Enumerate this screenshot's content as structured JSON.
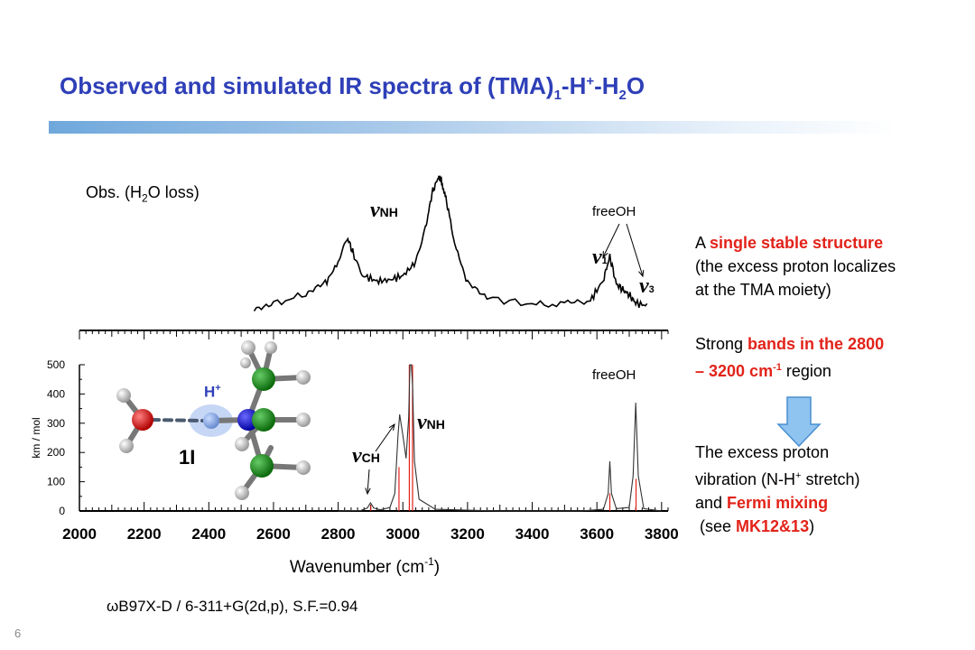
{
  "title": {
    "part1": "Observed and simulated IR spectra of (TMA)",
    "sub1": "1",
    "part2": "-H",
    "sup1": "+",
    "part3": "-H",
    "sub2": "2",
    "part4": "O"
  },
  "obs_label": {
    "prefix": "Obs. (H",
    "sub": "2",
    "suffix": "O loss)"
  },
  "annotations": {
    "nu_symbol": "ν",
    "nh": "NH",
    "ch": "CH",
    "nu1": "1",
    "nu3": "3",
    "freeoh_top": "freeOH",
    "freeoh_bottom": "freeOH",
    "h_plus": "H",
    "h_plus_sup": "+",
    "structure_label": "1I"
  },
  "side_text": {
    "p1_a": "A ",
    "p1_b": "single stable structure",
    "p1_c": "(the excess proton localizes",
    "p1_d": "at the TMA moiety)",
    "p2_a": "Strong ",
    "p2_b": "bands in the 2800",
    "p2_c": "– 3200 cm",
    "p2_c_sup": "-1",
    "p2_d": " region",
    "p3_a": "The excess proton",
    "p3_b": "vibration (N-H",
    "p3_b_sup": "+",
    "p3_c": " stretch)",
    "p3_d": "and ",
    "p3_e": "Fermi mixing",
    "p3_f": "(see ",
    "p3_g": "MK12&13",
    "p3_h": ")"
  },
  "method": "ωB97X-D / 6-311+G(2d,p),   S.F.=0.94",
  "page_number": "6",
  "colors": {
    "title": "#2e3fb8",
    "red_text": "#e2231a",
    "stick": "#e2231a",
    "arrow": "#8fc3f0"
  },
  "chart_data": [
    {
      "type": "line",
      "title": "Obs. (H2O loss)",
      "series": [
        {
          "x": [
            2540,
            2600,
            2700,
            2760,
            2800,
            2830,
            2850,
            2880,
            2920,
            2960,
            3000,
            3040,
            3070,
            3090,
            3110,
            3120,
            3135,
            3160,
            3200,
            3260,
            3400,
            3500,
            3580,
            3620,
            3640,
            3660,
            3680,
            3700,
            3720,
            3760
          ],
          "y": [
            0.05,
            0.08,
            0.14,
            0.22,
            0.38,
            0.55,
            0.42,
            0.28,
            0.24,
            0.25,
            0.28,
            0.38,
            0.62,
            0.88,
            1.0,
            0.97,
            0.82,
            0.52,
            0.22,
            0.12,
            0.07,
            0.07,
            0.1,
            0.25,
            0.42,
            0.22,
            0.18,
            0.14,
            0.08,
            0.06
          ]
        }
      ]
    },
    {
      "type": "line",
      "xlabel": "Wavenumber (cm-1)",
      "ylabel": "km / mol",
      "xlim": [
        2000,
        3820
      ],
      "ylim": [
        0,
        500
      ],
      "xticks": [
        2000,
        2200,
        2400,
        2600,
        2800,
        3000,
        3200,
        3400,
        3600,
        3800
      ],
      "yticks": [
        0,
        100,
        200,
        300,
        400,
        500
      ],
      "series": [
        {
          "name": "broadened",
          "x": [
            2800,
            2870,
            2890,
            2900,
            2910,
            2930,
            2960,
            2975,
            2985,
            2990,
            3000,
            3010,
            3018,
            3022,
            3026,
            3030,
            3036,
            3050,
            3100,
            3300,
            3550,
            3620,
            3635,
            3640,
            3645,
            3660,
            3700,
            3712,
            3720,
            3728,
            3745,
            3800
          ],
          "y": [
            0,
            2,
            10,
            28,
            10,
            4,
            12,
            60,
            260,
            330,
            260,
            180,
            320,
            500,
            500,
            430,
            170,
            40,
            6,
            0,
            0,
            6,
            60,
            170,
            60,
            8,
            12,
            120,
            370,
            120,
            8,
            0
          ]
        },
        {
          "name": "sticks",
          "sticks": [
            [
              2901,
              20
            ],
            [
              2988,
              150
            ],
            [
              3020,
              500
            ],
            [
              3030,
              500
            ],
            [
              3640,
              60
            ],
            [
              3721,
              110
            ]
          ]
        }
      ]
    }
  ]
}
